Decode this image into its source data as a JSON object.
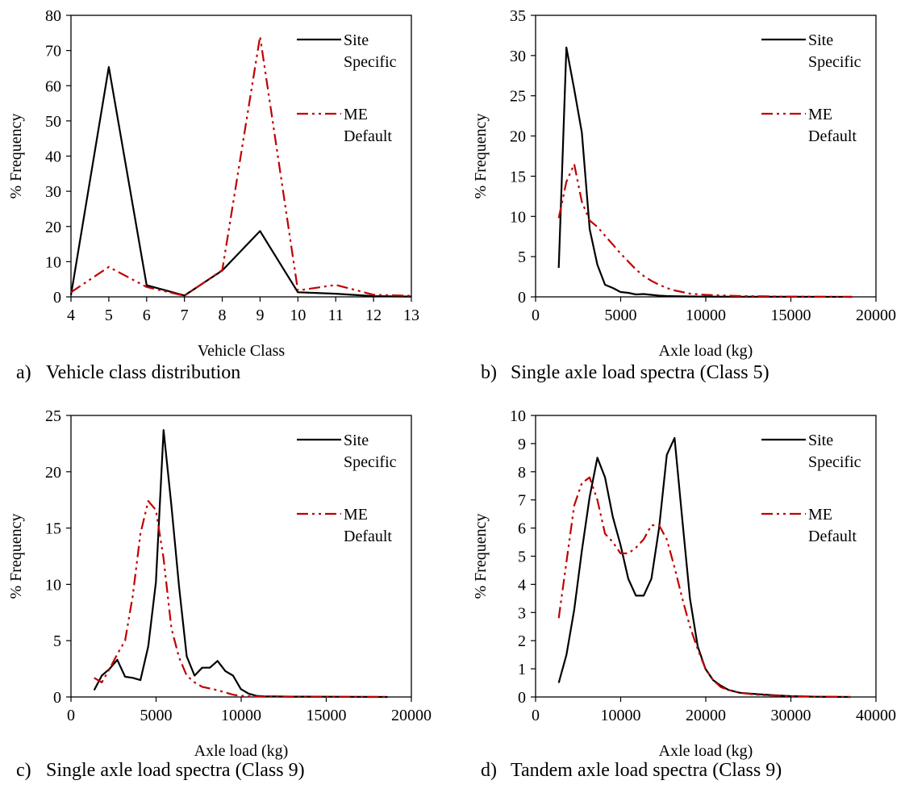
{
  "chart_data": [
    {
      "type": "line",
      "caption_letter": "a)",
      "caption": "Vehicle class distribution",
      "xlabel": "Vehicle Class",
      "ylabel": "% Frequency",
      "xlim": [
        4,
        13
      ],
      "ylim": [
        0,
        80
      ],
      "xticks": [
        4,
        5,
        6,
        7,
        8,
        9,
        10,
        11,
        12,
        13
      ],
      "yticks": [
        0,
        10,
        20,
        30,
        40,
        50,
        60,
        70,
        80
      ],
      "legend_position": "top-right",
      "series": [
        {
          "name": "Site Specific",
          "label_line1": "Site",
          "label_line2": "Specific",
          "color": "#000000",
          "dash": "solid",
          "x": [
            4,
            5,
            6,
            7,
            8,
            9,
            10,
            11,
            12,
            13
          ],
          "y": [
            0.5,
            65.3,
            3.3,
            0.4,
            7.5,
            18.7,
            1.3,
            0.9,
            0.2,
            0.1
          ]
        },
        {
          "name": "ME Default",
          "label_line1": "ME",
          "label_line2": "Default",
          "color": "#c00000",
          "dash": "dashdotdot",
          "x": [
            4,
            5,
            6,
            7,
            8,
            9,
            10,
            11,
            12,
            13
          ],
          "y": [
            1.3,
            8.5,
            2.8,
            0.3,
            7.6,
            74.0,
            1.8,
            3.4,
            0.6,
            0.3
          ]
        }
      ]
    },
    {
      "type": "line",
      "caption_letter": "b)",
      "caption": "Single axle load spectra (Class 5)",
      "xlabel": "Axle load (kg)",
      "ylabel": "% Frequency",
      "xlim": [
        0,
        20000
      ],
      "ylim": [
        0,
        35
      ],
      "xticks": [
        0,
        5000,
        10000,
        15000,
        20000
      ],
      "yticks": [
        0,
        5,
        10,
        15,
        20,
        25,
        30,
        35
      ],
      "legend_position": "top-right",
      "series": [
        {
          "name": "Site Specific",
          "label_line1": "Site",
          "label_line2": "Specific",
          "color": "#000000",
          "dash": "solid",
          "x": [
            1360,
            1810,
            2270,
            2720,
            3180,
            3630,
            4080,
            4540,
            4990,
            5440,
            5900,
            6350,
            6800,
            7260,
            7710,
            8160,
            9070,
            10000,
            12000,
            15000,
            18600
          ],
          "y": [
            3.6,
            31.0,
            25.8,
            20.4,
            8.4,
            4.0,
            1.5,
            1.1,
            0.6,
            0.5,
            0.3,
            0.35,
            0.25,
            0.15,
            0.1,
            0.08,
            0.05,
            0.03,
            0.02,
            0.01,
            0.0
          ]
        },
        {
          "name": "ME Default",
          "label_line1": "ME",
          "label_line2": "Default",
          "color": "#c00000",
          "dash": "dashdotdot",
          "x": [
            1360,
            1810,
            2270,
            2720,
            3180,
            3630,
            4080,
            4540,
            4990,
            5440,
            5900,
            6350,
            6800,
            7260,
            7710,
            8160,
            9070,
            10000,
            12000,
            15000,
            18600
          ],
          "y": [
            9.8,
            14.3,
            16.5,
            11.8,
            9.5,
            8.7,
            7.6,
            6.5,
            5.4,
            4.4,
            3.4,
            2.6,
            2.0,
            1.5,
            1.1,
            0.8,
            0.4,
            0.25,
            0.1,
            0.03,
            0.0
          ]
        }
      ]
    },
    {
      "type": "line",
      "caption_letter": "c)",
      "caption": "Single axle load spectra (Class 9)",
      "xlabel": "Axle load (kg)",
      "ylabel": "% Frequency",
      "xlim": [
        0,
        20000
      ],
      "ylim": [
        0,
        25
      ],
      "xticks": [
        0,
        5000,
        10000,
        15000,
        20000
      ],
      "yticks": [
        0,
        5,
        10,
        15,
        20,
        25
      ],
      "legend_position": "top-right",
      "series": [
        {
          "name": "Site Specific",
          "label_line1": "Site",
          "label_line2": "Specific",
          "color": "#000000",
          "dash": "solid",
          "x": [
            1360,
            1810,
            2270,
            2720,
            3180,
            3630,
            4080,
            4540,
            4990,
            5440,
            5900,
            6350,
            6800,
            7260,
            7710,
            8160,
            8610,
            9070,
            9520,
            9980,
            10430,
            10890,
            11340,
            12000,
            13000,
            15000,
            18600
          ],
          "y": [
            0.6,
            1.9,
            2.5,
            3.3,
            1.8,
            1.7,
            1.5,
            4.5,
            10.2,
            23.7,
            17.0,
            9.8,
            3.6,
            1.9,
            2.6,
            2.6,
            3.2,
            2.3,
            1.9,
            0.7,
            0.3,
            0.1,
            0.06,
            0.04,
            0.03,
            0.02,
            0.0
          ]
        },
        {
          "name": "ME Default",
          "label_line1": "ME",
          "label_line2": "Default",
          "color": "#c00000",
          "dash": "dashdotdot",
          "x": [
            1360,
            1810,
            2270,
            2720,
            3180,
            3630,
            4080,
            4540,
            4990,
            5440,
            5900,
            6350,
            6800,
            7260,
            7710,
            8160,
            8610,
            9070,
            9520,
            9980,
            10430,
            10890,
            11340,
            12000,
            13000,
            15000,
            18600
          ],
          "y": [
            1.7,
            1.3,
            2.5,
            3.8,
            5.0,
            9.0,
            14.5,
            17.4,
            16.6,
            12.3,
            6.1,
            3.5,
            1.9,
            1.3,
            0.9,
            0.75,
            0.6,
            0.4,
            0.2,
            0.1,
            0.07,
            0.05,
            0.03,
            0.02,
            0.02,
            0.01,
            0.0
          ]
        }
      ]
    },
    {
      "type": "line",
      "caption_letter": "d)",
      "caption": "Tandem axle load spectra (Class 9)",
      "xlabel": "Axle load (kg)",
      "ylabel": "% Frequency",
      "xlim": [
        0,
        40000
      ],
      "ylim": [
        0,
        10
      ],
      "xticks": [
        0,
        10000,
        20000,
        30000,
        40000
      ],
      "yticks": [
        0,
        1,
        2,
        3,
        4,
        5,
        6,
        7,
        8,
        9,
        10
      ],
      "legend_position": "top-right",
      "series": [
        {
          "name": "Site Specific",
          "label_line1": "Site",
          "label_line2": "Specific",
          "color": "#000000",
          "dash": "solid",
          "x": [
            2720,
            3630,
            4540,
            5440,
            6350,
            7260,
            8160,
            9070,
            9980,
            10890,
            11790,
            12700,
            13610,
            14510,
            15420,
            16330,
            17240,
            18140,
            19050,
            19960,
            20860,
            21770,
            22680,
            24000,
            26000,
            28000,
            30000,
            33000,
            37000
          ],
          "y": [
            0.5,
            1.5,
            3.1,
            5.2,
            7.1,
            8.5,
            7.8,
            6.4,
            5.4,
            4.2,
            3.6,
            3.6,
            4.2,
            6.0,
            8.6,
            9.2,
            6.3,
            3.5,
            1.8,
            1.0,
            0.6,
            0.4,
            0.25,
            0.15,
            0.1,
            0.06,
            0.03,
            0.01,
            0.0
          ]
        },
        {
          "name": "ME Default",
          "label_line1": "ME",
          "label_line2": "Default",
          "color": "#c00000",
          "dash": "dashdotdot",
          "x": [
            2720,
            3630,
            4540,
            5440,
            6350,
            7260,
            8160,
            9070,
            9980,
            10890,
            11790,
            12700,
            13610,
            14510,
            15420,
            16330,
            17240,
            18140,
            19050,
            19960,
            20860,
            21770,
            22680,
            24000,
            26000,
            28000,
            30000,
            33000,
            37000
          ],
          "y": [
            2.8,
            4.8,
            6.8,
            7.6,
            7.8,
            7.0,
            5.8,
            5.5,
            5.1,
            5.1,
            5.3,
            5.6,
            6.1,
            6.1,
            5.6,
            4.6,
            3.5,
            2.5,
            1.7,
            1.0,
            0.6,
            0.35,
            0.25,
            0.15,
            0.08,
            0.05,
            0.03,
            0.01,
            0.0
          ]
        }
      ]
    }
  ]
}
